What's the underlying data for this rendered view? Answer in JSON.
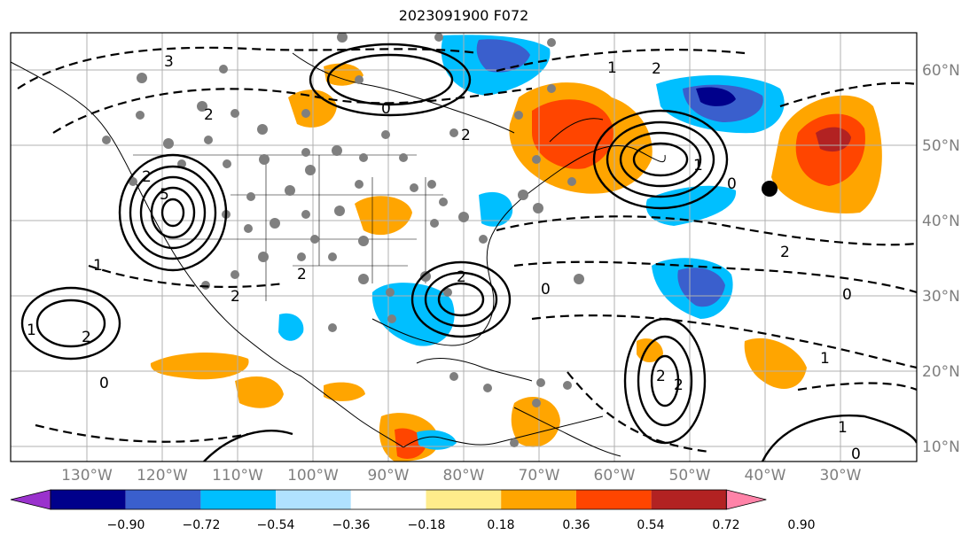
{
  "title": "2023091900 F072",
  "lon_labels": [
    "130°W",
    "120°W",
    "110°W",
    "100°W",
    "90°W",
    "80°W",
    "70°W",
    "60°W",
    "50°W",
    "40°W",
    "30°W"
  ],
  "lat_labels": [
    "60°N",
    "50°N",
    "40°N",
    "30°N",
    "20°N",
    "10°N"
  ],
  "colorbar": {
    "labels": [
      "−0.90",
      "−0.72",
      "−0.54",
      "−0.36",
      "−0.18",
      "0.18",
      "0.36",
      "0.54",
      "0.72",
      "0.90"
    ],
    "colors": [
      "#9a32cd",
      "#00008b",
      "#3a5fcd",
      "#00bfff",
      "#b0e2ff",
      "#ffffff",
      "#ffec8b",
      "#ffa500",
      "#ff4500",
      "#b22222",
      "#ff83a8"
    ]
  },
  "contour_labels": [
    "3",
    "2",
    "5",
    "2",
    "1",
    "0",
    "2",
    "2",
    "2",
    "1",
    "0",
    "0",
    "1",
    "2",
    "2",
    "1",
    "2",
    "1",
    "2",
    "2",
    "0",
    "1",
    "0",
    "2",
    "0"
  ],
  "colors": {
    "land_line": "#000000",
    "gridline": "#b0b0b0",
    "station_marker": "#7f7f7f"
  }
}
